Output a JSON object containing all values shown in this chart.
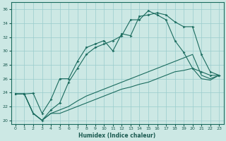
{
  "xlabel": "Humidex (Indice chaleur)",
  "bg_color": "#cce8e4",
  "line_color": "#1a6b5e",
  "grid_color": "#99cccc",
  "xlim": [
    -0.5,
    23.5
  ],
  "ylim": [
    19.5,
    37
  ],
  "yticks": [
    20,
    22,
    24,
    26,
    28,
    30,
    32,
    34,
    36
  ],
  "xticks": [
    0,
    1,
    2,
    3,
    4,
    5,
    6,
    7,
    8,
    9,
    10,
    11,
    12,
    13,
    14,
    15,
    16,
    17,
    18,
    19,
    20,
    21,
    22,
    23
  ],
  "line1_x": [
    0,
    1,
    2,
    3,
    4,
    5,
    6,
    7,
    8,
    9,
    10,
    11,
    12,
    13,
    14,
    15,
    16,
    17,
    18,
    19,
    20,
    21,
    22,
    23
  ],
  "line1_y": [
    23.8,
    23.8,
    23.9,
    21.0,
    23.0,
    26.0,
    26.0,
    28.5,
    30.5,
    31.0,
    31.5,
    30.0,
    32.5,
    32.2,
    35.0,
    35.2,
    35.5,
    35.2,
    34.2,
    33.5,
    33.5,
    29.5,
    27.0,
    26.5
  ],
  "line2_x": [
    0,
    1,
    2,
    3,
    4,
    5,
    6,
    7,
    8,
    9,
    10,
    11,
    12,
    13,
    14,
    15,
    16,
    17,
    18,
    19,
    20,
    21,
    22,
    23
  ],
  "line2_y": [
    23.8,
    23.8,
    21.0,
    20.0,
    21.5,
    22.5,
    25.5,
    27.5,
    29.5,
    30.5,
    31.0,
    31.5,
    32.2,
    34.5,
    34.5,
    35.8,
    35.2,
    34.5,
    31.5,
    29.8,
    27.5,
    27.0,
    26.5,
    26.5
  ],
  "line3_x": [
    0,
    1,
    2,
    3,
    4,
    5,
    6,
    7,
    8,
    9,
    10,
    11,
    12,
    13,
    14,
    15,
    16,
    17,
    18,
    19,
    20,
    21,
    22,
    23
  ],
  "line3_y": [
    23.8,
    23.8,
    21.0,
    20.0,
    21.0,
    21.5,
    22.0,
    22.8,
    23.5,
    24.0,
    24.5,
    25.0,
    25.5,
    26.0,
    26.5,
    27.0,
    27.5,
    28.0,
    28.5,
    29.0,
    29.5,
    26.5,
    26.0,
    26.5
  ],
  "line4_x": [
    0,
    1,
    2,
    3,
    4,
    5,
    6,
    7,
    8,
    9,
    10,
    11,
    12,
    13,
    14,
    15,
    16,
    17,
    18,
    19,
    20,
    21,
    22,
    23
  ],
  "line4_y": [
    23.8,
    23.8,
    21.0,
    20.0,
    21.0,
    21.0,
    21.5,
    22.0,
    22.5,
    23.0,
    23.5,
    24.0,
    24.5,
    24.8,
    25.2,
    25.5,
    26.0,
    26.5,
    27.0,
    27.2,
    27.5,
    26.0,
    25.8,
    26.5
  ]
}
